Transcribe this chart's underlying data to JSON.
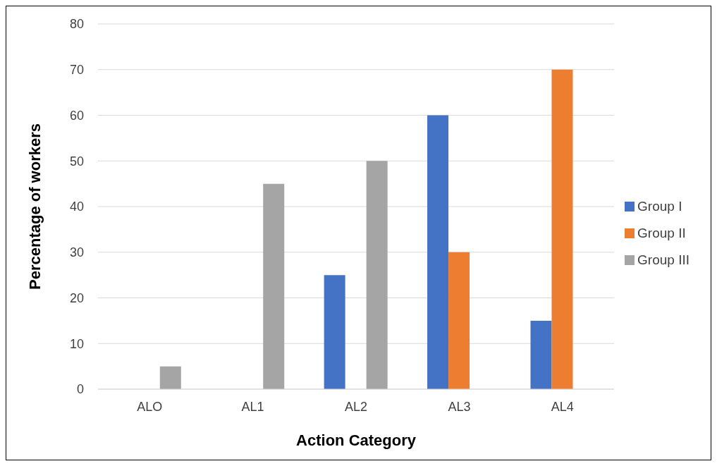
{
  "chart_data": {
    "type": "bar",
    "xlabel": "Action Category",
    "ylabel": "Percentage of workers",
    "categories": [
      "ALO",
      "AL1",
      "AL2",
      "AL3",
      "AL4"
    ],
    "series": [
      {
        "name": "Group I",
        "color": "#4472c4",
        "values": [
          0,
          0,
          25,
          60,
          15
        ]
      },
      {
        "name": "Group II",
        "color": "#ed7d31",
        "values": [
          0,
          0,
          0,
          30,
          70
        ]
      },
      {
        "name": "Group III",
        "color": "#a5a5a5",
        "values": [
          5,
          45,
          50,
          0,
          0
        ]
      }
    ],
    "ylim": [
      0,
      80
    ],
    "yticks": [
      0,
      10,
      20,
      30,
      40,
      50,
      60,
      70,
      80
    ],
    "grid": "y",
    "legend": "right"
  }
}
